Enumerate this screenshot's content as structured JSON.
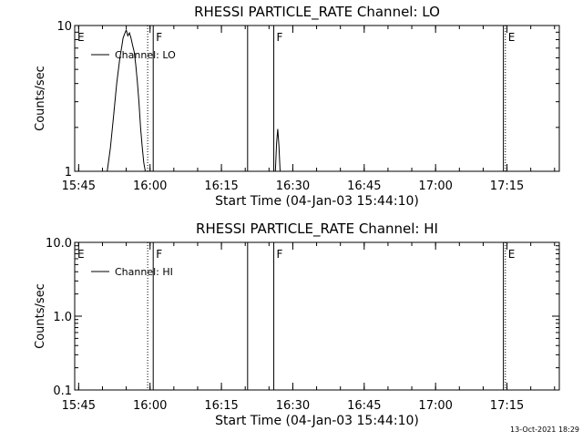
{
  "footer_timestamp": "13-Oct-2021 18:29",
  "chart_data": [
    {
      "type": "line",
      "title": "RHESSI PARTICLE_RATE Channel: LO",
      "xlabel": "Start Time (04-Jan-03 15:44:10)",
      "ylabel": "Counts/sec",
      "yscale": "log",
      "ylim": [
        1,
        10
      ],
      "xlim": [
        "15:44:10",
        "17:26:00"
      ],
      "x_ticks": [
        "15:45",
        "16:00",
        "16:15",
        "16:30",
        "16:45",
        "17:00",
        "17:15"
      ],
      "y_ticks": [
        "1",
        "10"
      ],
      "legend": {
        "placement": "top-left",
        "entries": [
          "Channel: LO"
        ]
      },
      "series": [
        {
          "name": "Channel: LO",
          "x": [
            "15:51:00",
            "15:51:40",
            "15:52:20",
            "15:53:00",
            "15:53:40",
            "15:54:00",
            "15:54:20",
            "15:54:40",
            "15:55:00",
            "15:55:20",
            "15:55:40",
            "15:56:00",
            "15:56:20",
            "15:56:40",
            "15:57:00",
            "15:57:20",
            "15:57:40",
            "15:58:00",
            "15:58:20",
            "15:58:40",
            "15:59:00"
          ],
          "y": [
            1.0,
            1.45,
            2.4,
            4.0,
            6.0,
            7.0,
            8.2,
            8.8,
            9.3,
            8.5,
            8.9,
            8.2,
            7.3,
            6.6,
            5.4,
            4.1,
            3.0,
            2.0,
            1.5,
            1.15,
            1.0
          ]
        },
        {
          "name": "",
          "x": [
            "16:26:20",
            "16:26:35",
            "16:26:50",
            "16:27:05",
            "16:27:20"
          ],
          "y": [
            1.0,
            1.55,
            1.95,
            1.5,
            1.0
          ]
        }
      ],
      "events": [
        {
          "label": "E",
          "time": "15:44:10",
          "style": "solid"
        },
        {
          "label": "",
          "time": "15:59:30",
          "style": "dotted"
        },
        {
          "label": "F",
          "time": "16:00:40",
          "style": "solid"
        },
        {
          "label": "",
          "time": "16:20:30",
          "style": "solid"
        },
        {
          "label": "F",
          "time": "16:26:00",
          "style": "solid"
        },
        {
          "label": "",
          "time": "17:14:15",
          "style": "solid"
        },
        {
          "label": "E",
          "time": "17:14:40",
          "style": "dotted"
        },
        {
          "label": "",
          "time": "17:26:00",
          "style": "dotted"
        }
      ]
    },
    {
      "type": "line",
      "title": "RHESSI PARTICLE_RATE Channel: HI",
      "xlabel": "Start Time (04-Jan-03 15:44:10)",
      "ylabel": "Counts/sec",
      "yscale": "log",
      "ylim": [
        0.1,
        10
      ],
      "xlim": [
        "15:44:10",
        "17:26:00"
      ],
      "x_ticks": [
        "15:45",
        "16:00",
        "16:15",
        "16:30",
        "16:45",
        "17:00",
        "17:15"
      ],
      "y_ticks": [
        "0.1",
        "1.0",
        "10.0"
      ],
      "legend": {
        "placement": "top-left",
        "entries": [
          "Channel: HI"
        ]
      },
      "series": [
        {
          "name": "Channel: HI",
          "x": [],
          "y": []
        }
      ],
      "events": [
        {
          "label": "E",
          "time": "15:44:10",
          "style": "solid"
        },
        {
          "label": "",
          "time": "15:59:30",
          "style": "dotted"
        },
        {
          "label": "F",
          "time": "16:00:40",
          "style": "solid"
        },
        {
          "label": "",
          "time": "16:20:30",
          "style": "solid"
        },
        {
          "label": "F",
          "time": "16:26:00",
          "style": "solid"
        },
        {
          "label": "",
          "time": "17:14:15",
          "style": "solid"
        },
        {
          "label": "E",
          "time": "17:14:40",
          "style": "dotted"
        },
        {
          "label": "",
          "time": "17:26:00",
          "style": "dotted"
        }
      ]
    }
  ]
}
